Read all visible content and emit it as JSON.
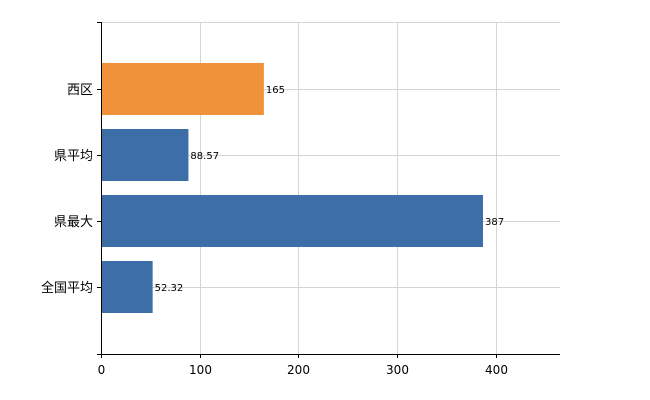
{
  "chart_data": {
    "type": "bar",
    "orientation": "horizontal",
    "categories": [
      "西区",
      "県平均",
      "県最大",
      "全国平均"
    ],
    "values": [
      165,
      88.57,
      387,
      52.32
    ],
    "value_labels": [
      "165",
      "88.57",
      "387",
      "52.32"
    ],
    "bar_colors": [
      "#f0923a",
      "#3d6ea8",
      "#3d6ea8",
      "#3d6ea8"
    ],
    "highlight_color": "#f0923a",
    "base_color": "#3d6ea8",
    "title": "",
    "xlabel": "",
    "ylabel": "",
    "xlim": [
      0,
      465
    ],
    "x_ticks": [
      0,
      100,
      200,
      300,
      400
    ],
    "x_tick_labels": [
      "0",
      "100",
      "200",
      "300",
      "400"
    ],
    "grid": true,
    "legend": "none"
  }
}
